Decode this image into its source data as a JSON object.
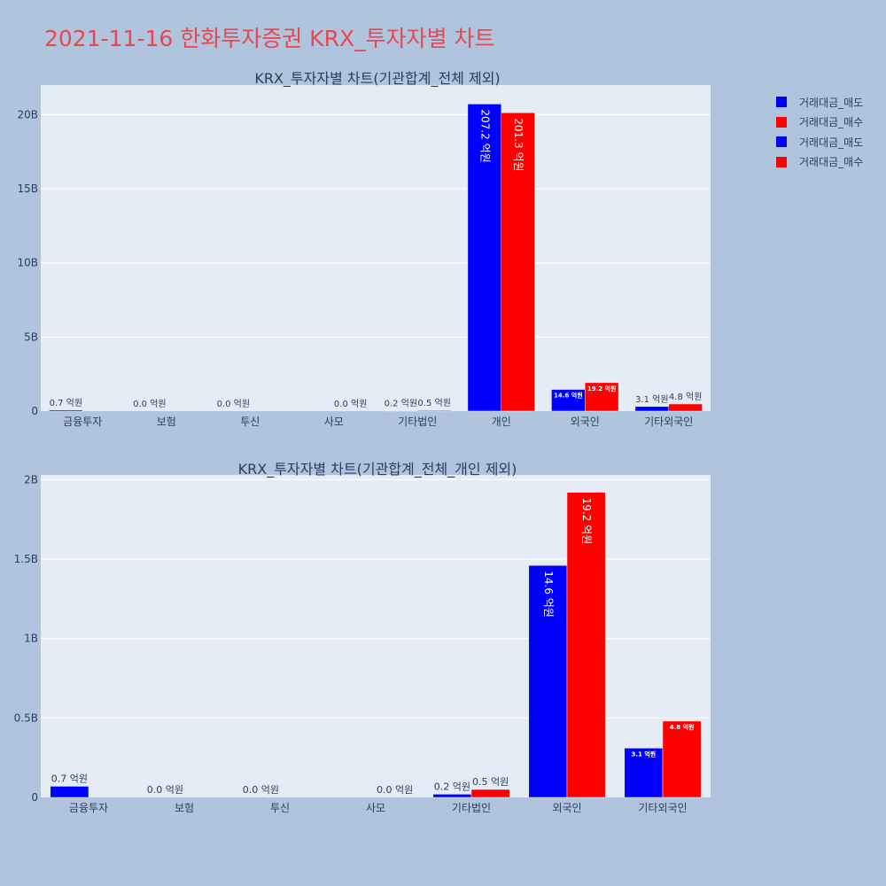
{
  "page_title": "2021-11-16 한화투자증권 KRX_투자자별 차트",
  "legend": [
    {
      "label": "거래대금_매도",
      "color": "#0000ff"
    },
    {
      "label": "거래대금_매수",
      "color": "#ff0000"
    },
    {
      "label": "거래대금_매도",
      "color": "#0000ff"
    },
    {
      "label": "거래대금_매수",
      "color": "#ff0000"
    }
  ],
  "chart_data": [
    {
      "type": "bar",
      "title": "KRX_투자자별 차트(기관합계_전체 제외)",
      "categories": [
        "금융투자",
        "보험",
        "투신",
        "사모",
        "기타법인",
        "개인",
        "외국인",
        "기타외국인"
      ],
      "ylim": [
        0,
        22000000000
      ],
      "yticks": [
        0,
        5000000000,
        10000000000,
        15000000000,
        20000000000
      ],
      "ytick_labels": [
        "0",
        "5B",
        "10B",
        "15B",
        "20B"
      ],
      "grid": true,
      "legend_position": "top-right",
      "series": [
        {
          "name": "거래대금_매도",
          "color": "#0000ff",
          "values": [
            70000000,
            0,
            0,
            null,
            20000000,
            20720000000,
            1460000000,
            310000000
          ],
          "labels": [
            "0.7 억원",
            "0.0 억원",
            "0.0 억원",
            "",
            "0.2 억원",
            "207.2 억원",
            "14.6 억원",
            "3.1 억원"
          ]
        },
        {
          "name": "거래대금_매수",
          "color": "#ff0000",
          "values": [
            null,
            null,
            null,
            0,
            50000000,
            20130000000,
            1920000000,
            480000000
          ],
          "labels": [
            "",
            "",
            "",
            "0.0 억원",
            "0.5 억원",
            "201.3 억원",
            "19.2 억원",
            "4.8 억원"
          ]
        }
      ]
    },
    {
      "type": "bar",
      "title": "KRX_투자자별 차트(기관합계_전체_개인 제외)",
      "categories": [
        "금융투자",
        "보험",
        "투신",
        "사모",
        "기타법인",
        "외국인",
        "기타외국인"
      ],
      "ylim": [
        0,
        2030000000
      ],
      "yticks": [
        0,
        500000000,
        1000000000,
        1500000000,
        2000000000
      ],
      "ytick_labels": [
        "0",
        "0.5B",
        "1B",
        "1.5B",
        "2B"
      ],
      "grid": true,
      "legend_position": "top-right",
      "series": [
        {
          "name": "거래대금_매도",
          "color": "#0000ff",
          "values": [
            70000000,
            0,
            0,
            null,
            20000000,
            1460000000,
            310000000
          ],
          "labels": [
            "0.7 억원",
            "0.0 억원",
            "0.0 억원",
            "",
            "0.2 억원",
            "14.6 억원",
            "3.1 억원"
          ]
        },
        {
          "name": "거래대금_매수",
          "color": "#ff0000",
          "values": [
            null,
            null,
            null,
            0,
            50000000,
            1920000000,
            480000000
          ],
          "labels": [
            "",
            "",
            "",
            "0.0 억원",
            "0.5 억원",
            "19.2 억원",
            "4.8 억원"
          ]
        }
      ]
    }
  ]
}
